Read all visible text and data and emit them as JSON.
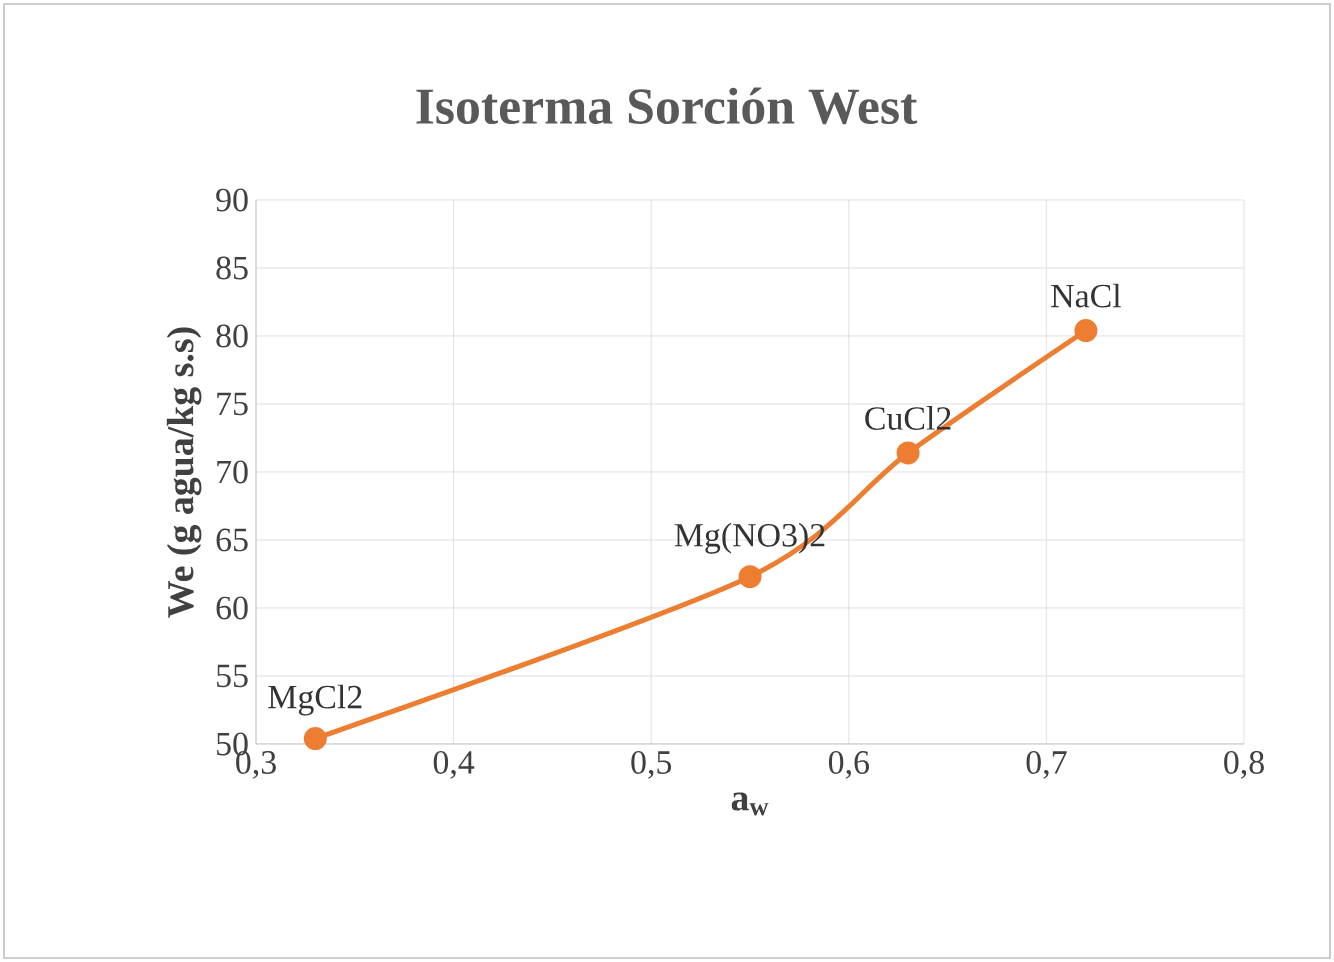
{
  "chart_data": {
    "type": "line",
    "title": "Isoterma Sorción West",
    "xlabel": "a$_{w}$",
    "ylabel": "We (g agua/kg s.s)",
    "x": [
      0.33,
      0.55,
      0.63,
      0.72
    ],
    "values": [
      50.4,
      62.3,
      71.4,
      80.4
    ],
    "color": "#ed7d31",
    "marker": "circle",
    "line_style": "solid",
    "grid": true,
    "xlim": [
      0.3,
      0.8
    ],
    "ylim": [
      50,
      90
    ],
    "xticks": [
      {
        "value": 0.3,
        "label": "0,3"
      },
      {
        "value": 0.4,
        "label": "0,4"
      },
      {
        "value": 0.5,
        "label": "0,5"
      },
      {
        "value": 0.6,
        "label": "0,6"
      },
      {
        "value": 0.7,
        "label": "0,7"
      },
      {
        "value": 0.8,
        "label": "0,8"
      }
    ],
    "yticks": [
      50,
      55,
      60,
      65,
      70,
      75,
      80,
      85,
      90
    ],
    "annotations": [
      {
        "text": "MgCl2",
        "x": 0.33,
        "y": 50.4
      },
      {
        "text": "Mg(NO3)2",
        "x": 0.55,
        "y": 62.3
      },
      {
        "text": "CuCl2",
        "x": 0.63,
        "y": 71.4
      },
      {
        "text": "NaCl",
        "x": 0.72,
        "y": 80.4
      }
    ]
  }
}
